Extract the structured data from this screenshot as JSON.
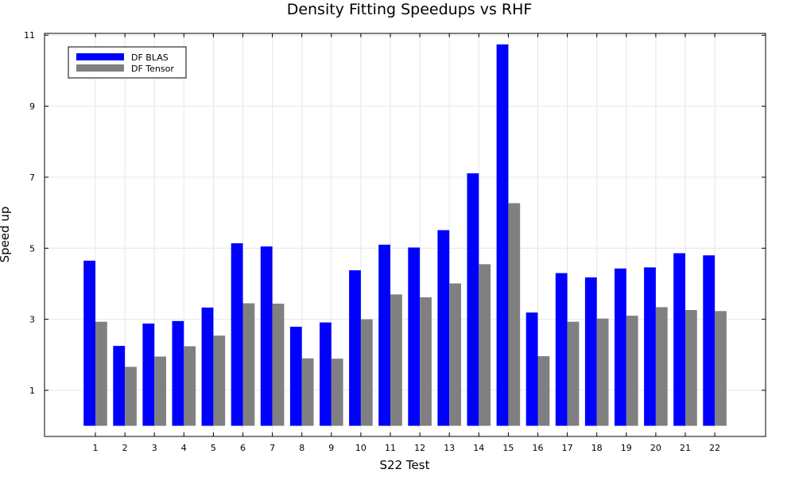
{
  "chart_data": {
    "type": "bar",
    "title": "Density Fitting Speedups vs RHF",
    "xlabel": "S22 Test",
    "ylabel": "Speed up",
    "categories": [
      "1",
      "2",
      "3",
      "4",
      "5",
      "6",
      "7",
      "8",
      "9",
      "10",
      "11",
      "12",
      "13",
      "14",
      "15",
      "16",
      "17",
      "18",
      "19",
      "20",
      "21",
      "22"
    ],
    "series": [
      {
        "name": "DF BLAS",
        "color": "#0000ff",
        "values": [
          4.65,
          2.25,
          2.88,
          2.95,
          3.33,
          5.14,
          5.05,
          2.79,
          2.91,
          4.38,
          5.1,
          5.02,
          5.51,
          7.11,
          10.74,
          3.19,
          4.3,
          4.18,
          4.43,
          4.46,
          4.86,
          4.8
        ]
      },
      {
        "name": "DF Tensor",
        "color": "#808080",
        "values": [
          2.93,
          1.66,
          1.95,
          2.24,
          2.54,
          3.45,
          3.44,
          1.9,
          1.89,
          3.0,
          3.7,
          3.62,
          4.01,
          4.55,
          6.27,
          1.96,
          2.93,
          3.02,
          3.1,
          3.34,
          3.26,
          3.23
        ]
      }
    ],
    "ylim": [
      -0.3,
      11.05
    ],
    "yticks": [
      1,
      3,
      5,
      7,
      9,
      11
    ],
    "grid": true,
    "legend_position": "top-left"
  }
}
